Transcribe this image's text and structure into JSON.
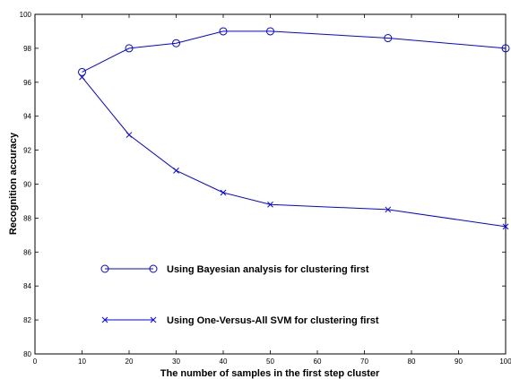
{
  "chart_data": {
    "type": "line",
    "title": "",
    "xlabel": "The number of samples in the first step cluster",
    "ylabel": "Recognition accuracy",
    "xlim": [
      0,
      100
    ],
    "ylim": [
      80,
      100
    ],
    "xticks": [
      0,
      10,
      20,
      30,
      40,
      50,
      60,
      70,
      80,
      90,
      100
    ],
    "yticks": [
      80,
      82,
      84,
      86,
      88,
      90,
      92,
      94,
      96,
      98,
      100
    ],
    "grid": false,
    "legend_position": "inside-lower-left",
    "line_color": "#0000ff",
    "x": [
      10,
      20,
      30,
      40,
      50,
      75,
      100
    ],
    "series": [
      {
        "name": "Using Bayesian analysis for clustering first",
        "marker": "circle",
        "values": [
          96.6,
          98.0,
          98.3,
          99.0,
          99.0,
          98.6,
          98.0
        ]
      },
      {
        "name": "Using One-Versus-All SVM for clustering first",
        "marker": "x",
        "values": [
          96.3,
          92.9,
          90.8,
          89.5,
          88.8,
          88.5,
          87.5
        ]
      }
    ]
  }
}
